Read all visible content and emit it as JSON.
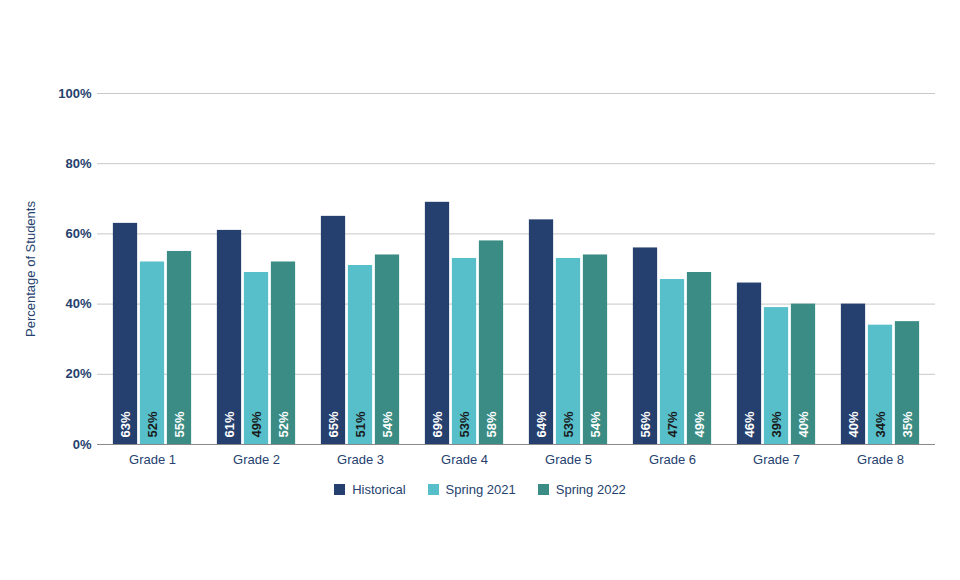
{
  "chart_data": {
    "type": "bar",
    "ylabel": "Percentage of Students",
    "categories": [
      "Grade 1",
      "Grade 2",
      "Grade 3",
      "Grade 4",
      "Grade 5",
      "Grade 6",
      "Grade 7",
      "Grade 8"
    ],
    "series": [
      {
        "name": "Historical",
        "color": "#253f6e",
        "values": [
          63,
          61,
          65,
          69,
          64,
          56,
          46,
          40
        ],
        "value_labels": [
          "63%",
          "61%",
          "65%",
          "69%",
          "64%",
          "56%",
          "46%",
          "40%"
        ]
      },
      {
        "name": "Spring 2021",
        "color": "#56bfca",
        "values": [
          52,
          49,
          51,
          53,
          53,
          47,
          39,
          34
        ],
        "value_labels": [
          "52%",
          "49%",
          "51%",
          "53%",
          "53%",
          "47%",
          "39%",
          "34%"
        ]
      },
      {
        "name": "Spring 2022",
        "color": "#3a8c84",
        "values": [
          55,
          52,
          54,
          58,
          54,
          49,
          40,
          35
        ],
        "value_labels": [
          "55%",
          "52%",
          "54%",
          "58%",
          "54%",
          "49%",
          "40%",
          "35%"
        ]
      }
    ],
    "ylim": [
      0,
      100
    ],
    "yticks": [
      {
        "value": 0,
        "label": "0%"
      },
      {
        "value": 20,
        "label": "20%"
      },
      {
        "value": 40,
        "label": "40%"
      },
      {
        "value": 60,
        "label": "60%"
      },
      {
        "value": 80,
        "label": "80%"
      },
      {
        "value": 100,
        "label": "100%"
      }
    ],
    "grid": true,
    "data_labels": true,
    "legend": "bottom"
  }
}
